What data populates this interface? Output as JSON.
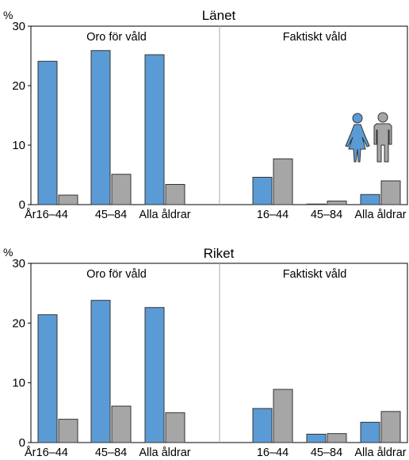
{
  "colors": {
    "women": "#5b9bd5",
    "men": "#a6a6a6"
  },
  "legend_icons": [
    "woman-icon",
    "man-icon"
  ],
  "chart_data": [
    {
      "type": "bar",
      "title": "Länet",
      "ylabel": "%",
      "ylim": [
        0,
        30
      ],
      "yticks": [
        "0",
        "10",
        "20",
        "30"
      ],
      "groups": [
        "Oro för våld",
        "Faktiskt våld"
      ],
      "categories": [
        "År16–44",
        "45–84",
        "Alla åldrar",
        "16–44",
        "45–84",
        "Alla åldrar"
      ],
      "series": [
        {
          "values": [
            24.1,
            25.9,
            25.2,
            4.6,
            0.1,
            1.7
          ]
        },
        {
          "values": [
            1.6,
            5.1,
            3.4,
            7.7,
            0.6,
            4.0
          ]
        }
      ]
    },
    {
      "type": "bar",
      "title": "Riket",
      "ylabel": "%",
      "ylim": [
        0,
        30
      ],
      "yticks": [
        "0",
        "10",
        "20",
        "30"
      ],
      "groups": [
        "Oro för våld",
        "Faktiskt våld"
      ],
      "categories": [
        "År16–44",
        "45–84",
        "Alla åldrar",
        "16–44",
        "45–84",
        "Alla åldrar"
      ],
      "series": [
        {
          "values": [
            21.4,
            23.8,
            22.6,
            5.7,
            1.4,
            3.4
          ]
        },
        {
          "values": [
            3.9,
            6.1,
            5.0,
            8.9,
            1.5,
            5.2
          ]
        }
      ]
    }
  ]
}
